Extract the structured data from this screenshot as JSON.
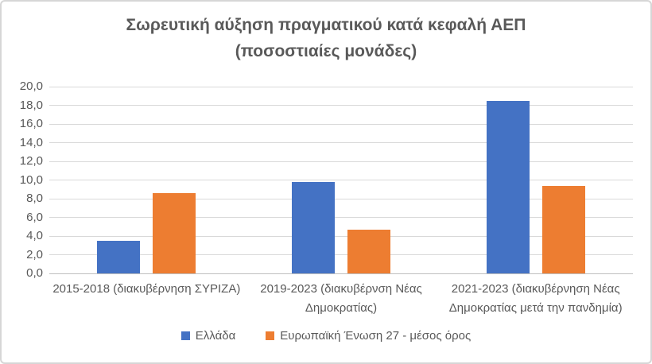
{
  "title": {
    "line1": "Σωρευτική αύξηση πραγματικού κατά κεφαλή ΑΕΠ",
    "line2": "(ποσοστιαίες μονάδες)"
  },
  "chart_data": {
    "type": "bar",
    "title": "Σωρευτική αύξηση πραγματικού κατά κεφαλή ΑΕΠ (ποσοστιαίες μονάδες)",
    "categories": [
      "2015-2018 (διακυβέρνηση ΣΥΡΙΖΑ)",
      "2019-2023 (διακυβέρνση Νέας Δημοκρατίας)",
      "2021-2023 (διακυβέρνηση Νέας Δημοκρατίας μετά την πανδημία)"
    ],
    "series": [
      {
        "name": "Ελλάδα",
        "color": "#4472C4",
        "values": [
          3.5,
          9.8,
          18.5
        ]
      },
      {
        "name": "Ευρωπαϊκή Ένωση 27 - μέσος όρος",
        "color": "#ED7D31",
        "values": [
          8.6,
          4.7,
          9.4
        ]
      }
    ],
    "xlabel": "",
    "ylabel": "",
    "ylim": [
      0,
      20
    ],
    "ytick_step": 2,
    "ytick_labels": [
      "0,0",
      "2,0",
      "4,0",
      "6,0",
      "8,0",
      "10,0",
      "12,0",
      "14,0",
      "16,0",
      "18,0",
      "20,0"
    ],
    "grid": true,
    "legend_position": "bottom",
    "decimal_format": "comma"
  },
  "colors": {
    "text": "#595959",
    "gridline": "#D9D9D9",
    "axis_line": "#BFBFBF",
    "background": "#FFFFFF",
    "border": "#D6D6D6",
    "series_blue": "#4472C4",
    "series_orange": "#ED7D31"
  }
}
